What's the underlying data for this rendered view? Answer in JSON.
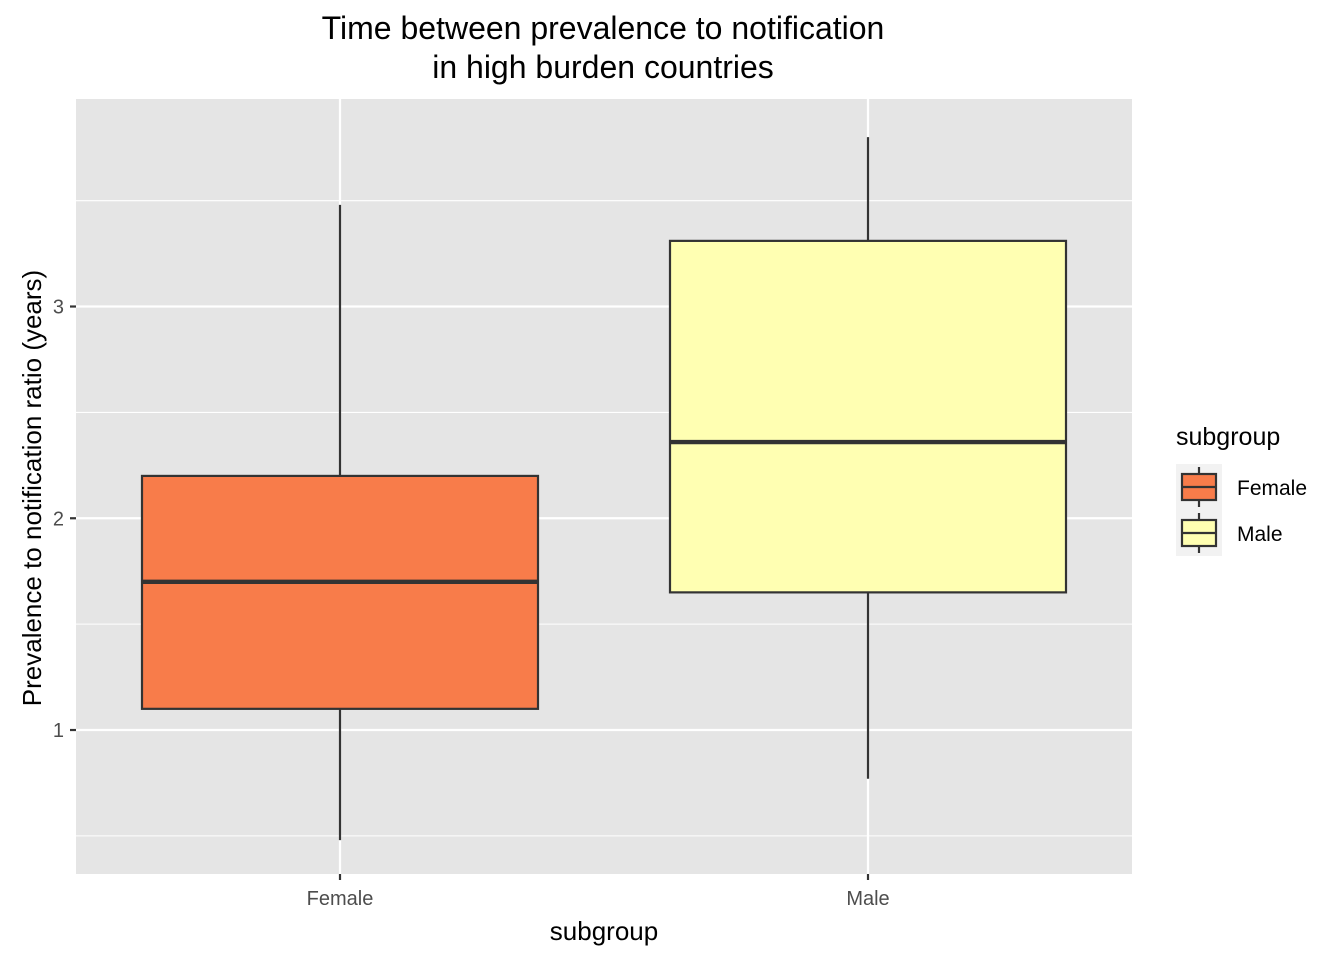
{
  "chart_data": {
    "type": "boxplot",
    "title_lines": [
      "Time between prevalence to notification",
      "in high burden countries"
    ],
    "xlabel": "subgroup",
    "ylabel": "Prevalence to notification ratio (years)",
    "categories": [
      "Female",
      "Male"
    ],
    "y_ticks": [
      1,
      2,
      3
    ],
    "ylim": [
      0.32,
      3.98
    ],
    "grid": true,
    "legend": {
      "title": "subgroup",
      "placement": "right",
      "entries": [
        "Female",
        "Male"
      ]
    },
    "series": [
      {
        "name": "Female",
        "whisker_low": 0.48,
        "q1": 1.1,
        "median": 1.7,
        "q3": 2.2,
        "whisker_high": 3.48,
        "fill": "#F87C4A"
      },
      {
        "name": "Male",
        "whisker_low": 0.77,
        "q1": 1.65,
        "median": 2.36,
        "q3": 3.31,
        "whisker_high": 3.8,
        "fill": "#FFFFB2"
      }
    ],
    "colors": {
      "panel": "#E5E5E5",
      "grid": "#FFFFFF",
      "outline": "#333333",
      "legend_key_bg": "#F2F2F2"
    }
  }
}
